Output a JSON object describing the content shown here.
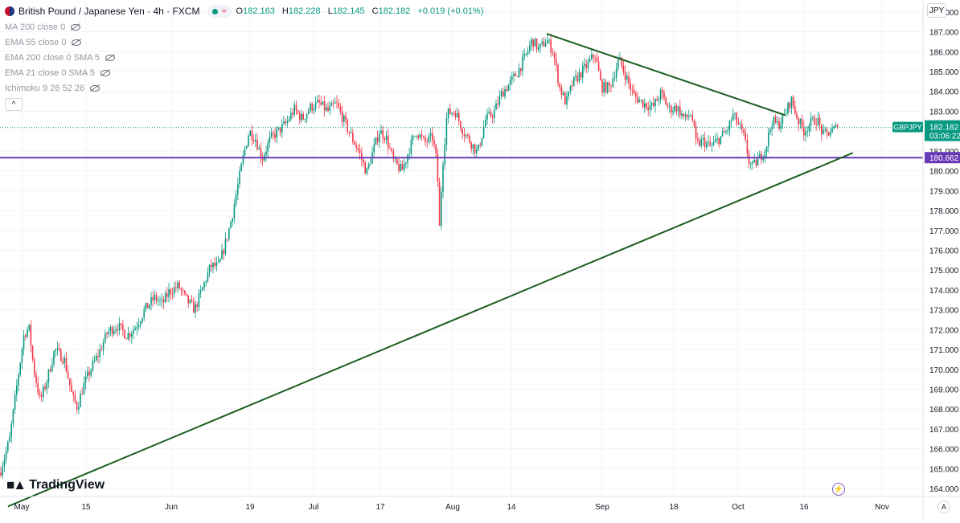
{
  "header": {
    "symbol_title": "British Pound / Japanese Yen · 4h · FXCM",
    "wave_icon": "≈",
    "o_label": "O",
    "o_value": "182.163",
    "h_label": "H",
    "h_value": "182.228",
    "l_label": "L",
    "l_value": "182.145",
    "c_label": "C",
    "c_value": "182.182",
    "change": "+0.019 (+0.01%)"
  },
  "indicators": [
    "MA 200 close 0",
    "EMA 55 close 0",
    "EMA 200 close 0 SMA 5",
    "EMA 21 close 0 SMA 5",
    "Ichimoku 9 26 52 26"
  ],
  "currency": "JPY",
  "branding": {
    "name": "TradingView"
  },
  "auto_label": "A",
  "goto_icon": "⚡",
  "colors": {
    "up": "#089981",
    "down": "#f23645",
    "trendline": "#1b5e20",
    "level_line": "#673ab7",
    "grid": "#f0f3fa",
    "axis_text": "#131722",
    "background": "#ffffff"
  },
  "chart_data": {
    "type": "candlestick",
    "symbol": "GBPJPY",
    "timeframe": "4h",
    "y_axis": {
      "range": [
        163.6,
        188.6
      ],
      "ticks": [
        "164.000",
        "165.000",
        "166.000",
        "167.000",
        "168.000",
        "169.000",
        "170.000",
        "171.000",
        "172.000",
        "173.000",
        "174.000",
        "175.000",
        "176.000",
        "177.000",
        "178.000",
        "179.000",
        "180.000",
        "181.000",
        "182.000",
        "183.000",
        "184.000",
        "185.000",
        "186.000",
        "187.000",
        "188.000"
      ]
    },
    "x_axis": {
      "ticks": [
        "May",
        "15",
        "Jun",
        "19",
        "Jul",
        "17",
        "Aug",
        "14",
        "Sep",
        "18",
        "Oct",
        "16",
        "Nov"
      ]
    },
    "grid": true,
    "last_price": {
      "symbol_label": "GBPJPY",
      "price": "182.182",
      "countdown": "03:06:22"
    },
    "horizontal_line": {
      "value": "180.662"
    },
    "path_points": [
      [
        0,
        164.8
      ],
      [
        12,
        166.5
      ],
      [
        22,
        169.5
      ],
      [
        30,
        171.8
      ],
      [
        36,
        172.1
      ],
      [
        42,
        170.0
      ],
      [
        50,
        168.4
      ],
      [
        58,
        169.4
      ],
      [
        68,
        171.0
      ],
      [
        80,
        170.5
      ],
      [
        90,
        168.6
      ],
      [
        96,
        168.1
      ],
      [
        104,
        169.2
      ],
      [
        114,
        170.1
      ],
      [
        124,
        170.9
      ],
      [
        134,
        171.9
      ],
      [
        146,
        172.2
      ],
      [
        158,
        171.7
      ],
      [
        168,
        172.1
      ],
      [
        180,
        173.0
      ],
      [
        192,
        173.6
      ],
      [
        202,
        173.3
      ],
      [
        210,
        173.9
      ],
      [
        222,
        174.2
      ],
      [
        230,
        173.6
      ],
      [
        242,
        173.0
      ],
      [
        252,
        174.1
      ],
      [
        262,
        175.2
      ],
      [
        272,
        175.2
      ],
      [
        280,
        176.3
      ],
      [
        288,
        177.6
      ],
      [
        296,
        179.3
      ],
      [
        304,
        181.0
      ],
      [
        310,
        182.0
      ],
      [
        318,
        181.6
      ],
      [
        326,
        180.6
      ],
      [
        336,
        181.6
      ],
      [
        346,
        182.0
      ],
      [
        356,
        182.4
      ],
      [
        366,
        183.1
      ],
      [
        376,
        182.6
      ],
      [
        386,
        183.2
      ],
      [
        396,
        183.4
      ],
      [
        408,
        183.0
      ],
      [
        418,
        183.4
      ],
      [
        428,
        182.5
      ],
      [
        436,
        181.8
      ],
      [
        446,
        181.0
      ],
      [
        456,
        179.9
      ],
      [
        464,
        181.0
      ],
      [
        472,
        182.0
      ],
      [
        480,
        181.7
      ],
      [
        490,
        180.4
      ],
      [
        500,
        180.0
      ],
      [
        510,
        181.2
      ],
      [
        518,
        182.0
      ],
      [
        528,
        181.4
      ],
      [
        538,
        181.7
      ],
      [
        544,
        180.2
      ],
      [
        546,
        176.6
      ],
      [
        550,
        180.1
      ],
      [
        556,
        182.9
      ],
      [
        566,
        183.0
      ],
      [
        576,
        182.0
      ],
      [
        586,
        181.4
      ],
      [
        594,
        180.9
      ],
      [
        604,
        182.6
      ],
      [
        614,
        182.9
      ],
      [
        624,
        183.9
      ],
      [
        634,
        184.4
      ],
      [
        644,
        185.0
      ],
      [
        654,
        185.8
      ],
      [
        662,
        186.6
      ],
      [
        670,
        186.1
      ],
      [
        680,
        186.6
      ],
      [
        688,
        186.0
      ],
      [
        696,
        184.2
      ],
      [
        704,
        183.4
      ],
      [
        712,
        184.4
      ],
      [
        720,
        184.8
      ],
      [
        730,
        185.3
      ],
      [
        740,
        185.9
      ],
      [
        748,
        184.2
      ],
      [
        758,
        184.2
      ],
      [
        770,
        185.6
      ],
      [
        778,
        184.8
      ],
      [
        788,
        183.8
      ],
      [
        800,
        183.4
      ],
      [
        812,
        183.2
      ],
      [
        822,
        183.9
      ],
      [
        832,
        183.1
      ],
      [
        842,
        183.2
      ],
      [
        852,
        182.6
      ],
      [
        860,
        182.9
      ],
      [
        866,
        181.3
      ],
      [
        874,
        181.5
      ],
      [
        884,
        181.2
      ],
      [
        894,
        181.6
      ],
      [
        904,
        182.0
      ],
      [
        912,
        182.8
      ],
      [
        920,
        182.2
      ],
      [
        926,
        181.6
      ],
      [
        932,
        180.4
      ],
      [
        936,
        180.2
      ],
      [
        944,
        180.6
      ],
      [
        952,
        181.1
      ],
      [
        960,
        182.5
      ],
      [
        968,
        182.3
      ],
      [
        976,
        182.8
      ],
      [
        984,
        183.6
      ],
      [
        992,
        182.6
      ],
      [
        1000,
        182.0
      ],
      [
        1008,
        182.4
      ],
      [
        1016,
        182.6
      ],
      [
        1024,
        181.8
      ],
      [
        1034,
        182.0
      ],
      [
        1042,
        182.18
      ]
    ],
    "trendlines": [
      {
        "from": [
          "2023-04-28",
          163.1
        ],
        "to": [
          "2023-10-26",
          180.9
        ]
      },
      {
        "from": [
          "2023-08-21",
          186.9
        ],
        "to": [
          "2023-10-12",
          182.8
        ]
      }
    ]
  }
}
